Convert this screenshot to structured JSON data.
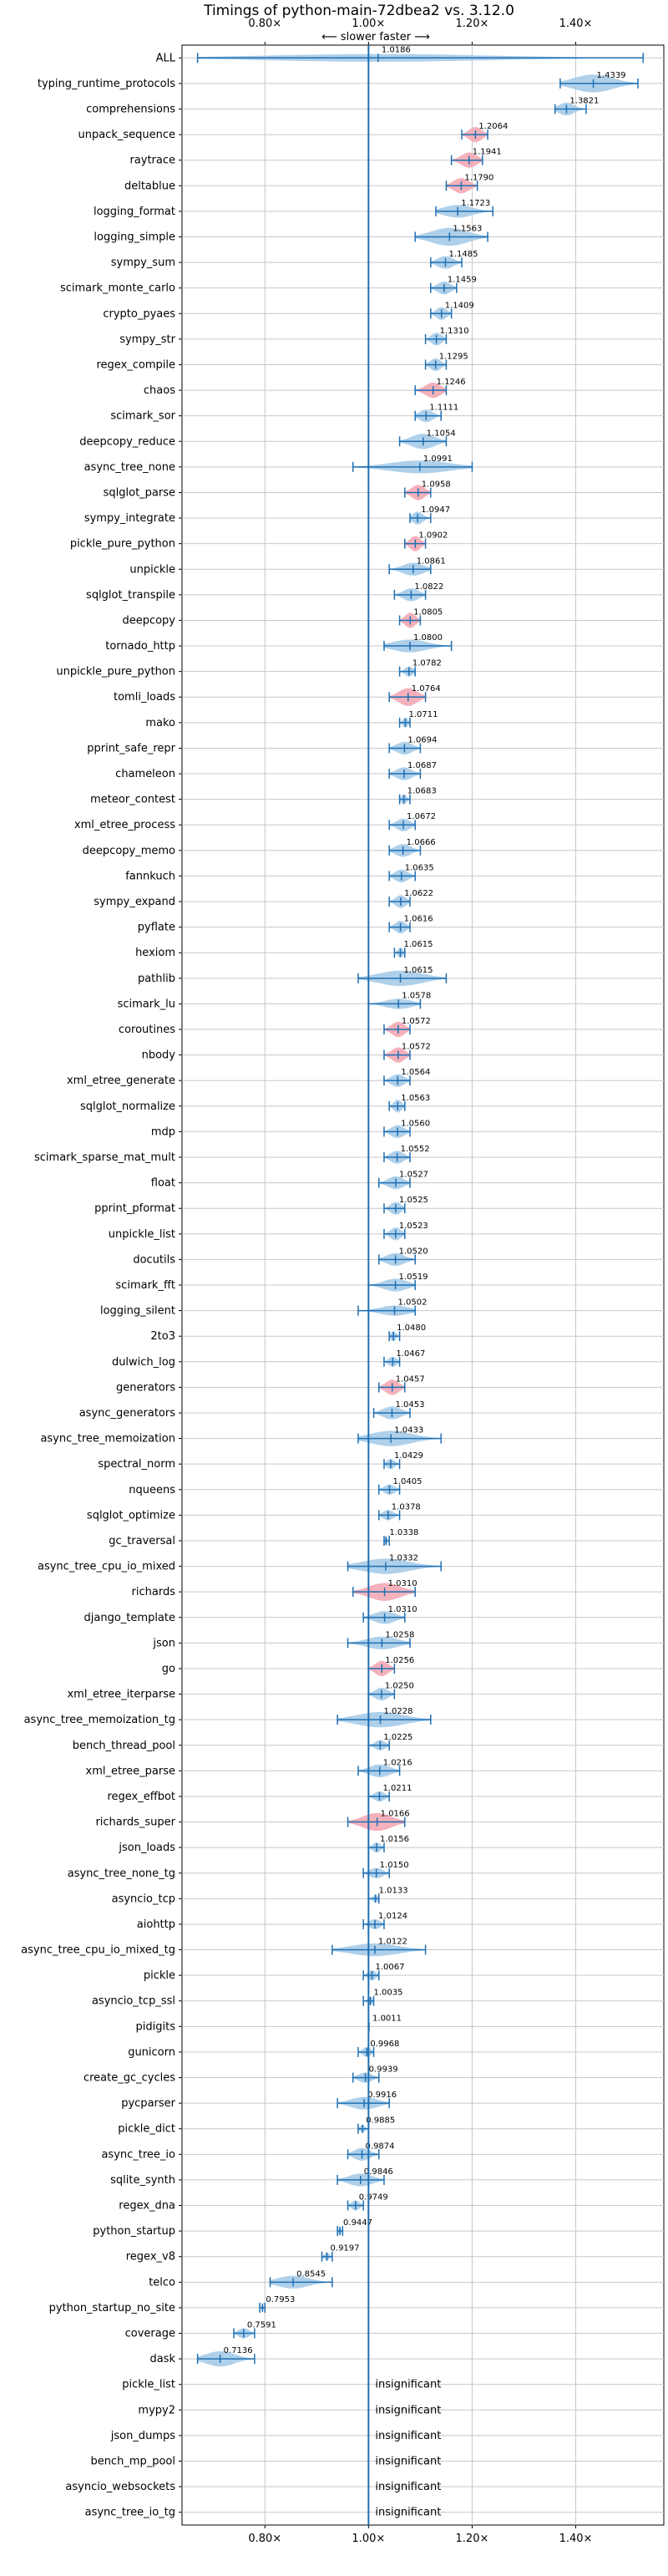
{
  "chart_data": {
    "type": "violin",
    "title": "Timings of python-main-72dbea2 vs. 3.12.0",
    "top_axis_note": "⟵ slower    faster ⟶",
    "x_ticks": [
      {
        "value": 0.8,
        "label": "0.80×"
      },
      {
        "value": 1.0,
        "label": "1.00×"
      },
      {
        "value": 1.2,
        "label": "1.20×"
      },
      {
        "value": 1.4,
        "label": "1.40×"
      }
    ],
    "xlim": [
      0.64,
      1.57
    ],
    "reference_line": 1.0,
    "insignificant_label": "insignificant",
    "colors": {
      "normal": "#a6cbe8",
      "highlight": "#f4a8b4",
      "line": "#1f6fb2",
      "grid": "#c8c8c8"
    },
    "benchmarks": [
      {
        "name": "ALL",
        "value": 1.0186,
        "label": "1.0186",
        "lo": 0.67,
        "hi": 1.53,
        "width": 0.3,
        "highlight": false
      },
      {
        "name": "typing_runtime_protocols",
        "value": 1.4339,
        "label": "1.4339",
        "lo": 1.37,
        "hi": 1.52,
        "width": 0.7,
        "highlight": false
      },
      {
        "name": "comprehensions",
        "value": 1.3821,
        "label": "1.3821",
        "lo": 1.36,
        "hi": 1.42,
        "width": 0.5,
        "highlight": false
      },
      {
        "name": "unpack_sequence",
        "value": 1.2064,
        "label": "1.2064",
        "lo": 1.18,
        "hi": 1.23,
        "width": 0.6,
        "highlight": true
      },
      {
        "name": "raytrace",
        "value": 1.1941,
        "label": "1.1941",
        "lo": 1.16,
        "hi": 1.22,
        "width": 0.6,
        "highlight": true
      },
      {
        "name": "deltablue",
        "value": 1.179,
        "label": "1.1790",
        "lo": 1.15,
        "hi": 1.21,
        "width": 0.6,
        "highlight": true
      },
      {
        "name": "logging_format",
        "value": 1.1723,
        "label": "1.1723",
        "lo": 1.13,
        "hi": 1.24,
        "width": 0.5,
        "highlight": false
      },
      {
        "name": "logging_simple",
        "value": 1.1563,
        "label": "1.1563",
        "lo": 1.09,
        "hi": 1.23,
        "width": 0.7,
        "highlight": false
      },
      {
        "name": "sympy_sum",
        "value": 1.1485,
        "label": "1.1485",
        "lo": 1.12,
        "hi": 1.18,
        "width": 0.5,
        "highlight": false
      },
      {
        "name": "scimark_monte_carlo",
        "value": 1.1459,
        "label": "1.1459",
        "lo": 1.12,
        "hi": 1.17,
        "width": 0.5,
        "highlight": false
      },
      {
        "name": "crypto_pyaes",
        "value": 1.1409,
        "label": "1.1409",
        "lo": 1.12,
        "hi": 1.16,
        "width": 0.5,
        "highlight": false
      },
      {
        "name": "sympy_str",
        "value": 1.131,
        "label": "1.1310",
        "lo": 1.11,
        "hi": 1.15,
        "width": 0.5,
        "highlight": false
      },
      {
        "name": "regex_compile",
        "value": 1.1295,
        "label": "1.1295",
        "lo": 1.11,
        "hi": 1.15,
        "width": 0.5,
        "highlight": false
      },
      {
        "name": "chaos",
        "value": 1.1246,
        "label": "1.1246",
        "lo": 1.09,
        "hi": 1.15,
        "width": 0.6,
        "highlight": true
      },
      {
        "name": "scimark_sor",
        "value": 1.1111,
        "label": "1.1111",
        "lo": 1.09,
        "hi": 1.14,
        "width": 0.5,
        "highlight": false
      },
      {
        "name": "deepcopy_reduce",
        "value": 1.1054,
        "label": "1.1054",
        "lo": 1.06,
        "hi": 1.15,
        "width": 0.6,
        "highlight": false
      },
      {
        "name": "async_tree_none",
        "value": 1.0991,
        "label": "1.0991",
        "lo": 0.97,
        "hi": 1.2,
        "width": 0.5,
        "highlight": false
      },
      {
        "name": "sqlglot_parse",
        "value": 1.0958,
        "label": "1.0958",
        "lo": 1.07,
        "hi": 1.12,
        "width": 0.6,
        "highlight": true
      },
      {
        "name": "sympy_integrate",
        "value": 1.0947,
        "label": "1.0947",
        "lo": 1.08,
        "hi": 1.12,
        "width": 0.5,
        "highlight": false
      },
      {
        "name": "pickle_pure_python",
        "value": 1.0902,
        "label": "1.0902",
        "lo": 1.07,
        "hi": 1.11,
        "width": 0.6,
        "highlight": true
      },
      {
        "name": "unpickle",
        "value": 1.0861,
        "label": "1.0861",
        "lo": 1.04,
        "hi": 1.12,
        "width": 0.5,
        "highlight": false
      },
      {
        "name": "sqlglot_transpile",
        "value": 1.0822,
        "label": "1.0822",
        "lo": 1.05,
        "hi": 1.11,
        "width": 0.5,
        "highlight": false
      },
      {
        "name": "deepcopy",
        "value": 1.0805,
        "label": "1.0805",
        "lo": 1.06,
        "hi": 1.1,
        "width": 0.6,
        "highlight": true
      },
      {
        "name": "tornado_http",
        "value": 1.08,
        "label": "1.0800",
        "lo": 1.03,
        "hi": 1.16,
        "width": 0.5,
        "highlight": false
      },
      {
        "name": "unpickle_pure_python",
        "value": 1.0782,
        "label": "1.0782",
        "lo": 1.06,
        "hi": 1.09,
        "width": 0.4,
        "highlight": false
      },
      {
        "name": "tomli_loads",
        "value": 1.0764,
        "label": "1.0764",
        "lo": 1.04,
        "hi": 1.11,
        "width": 0.7,
        "highlight": true
      },
      {
        "name": "mako",
        "value": 1.0711,
        "label": "1.0711",
        "lo": 1.06,
        "hi": 1.08,
        "width": 0.4,
        "highlight": false
      },
      {
        "name": "pprint_safe_repr",
        "value": 1.0694,
        "label": "1.0694",
        "lo": 1.04,
        "hi": 1.1,
        "width": 0.5,
        "highlight": false
      },
      {
        "name": "chameleon",
        "value": 1.0687,
        "label": "1.0687",
        "lo": 1.04,
        "hi": 1.1,
        "width": 0.5,
        "highlight": false
      },
      {
        "name": "meteor_contest",
        "value": 1.0683,
        "label": "1.0683",
        "lo": 1.06,
        "hi": 1.08,
        "width": 0.4,
        "highlight": false
      },
      {
        "name": "xml_etree_process",
        "value": 1.0672,
        "label": "1.0672",
        "lo": 1.04,
        "hi": 1.09,
        "width": 0.5,
        "highlight": false
      },
      {
        "name": "deepcopy_memo",
        "value": 1.0666,
        "label": "1.0666",
        "lo": 1.04,
        "hi": 1.1,
        "width": 0.5,
        "highlight": false
      },
      {
        "name": "fannkuch",
        "value": 1.0635,
        "label": "1.0635",
        "lo": 1.04,
        "hi": 1.09,
        "width": 0.5,
        "highlight": false
      },
      {
        "name": "sympy_expand",
        "value": 1.0622,
        "label": "1.0622",
        "lo": 1.04,
        "hi": 1.08,
        "width": 0.5,
        "highlight": false
      },
      {
        "name": "pyflate",
        "value": 1.0616,
        "label": "1.0616",
        "lo": 1.04,
        "hi": 1.08,
        "width": 0.5,
        "highlight": false
      },
      {
        "name": "hexiom",
        "value": 1.0615,
        "label": "1.0615",
        "lo": 1.05,
        "hi": 1.07,
        "width": 0.4,
        "highlight": false
      },
      {
        "name": "pathlib",
        "value": 1.0615,
        "label": "1.0615",
        "lo": 0.98,
        "hi": 1.15,
        "width": 0.6,
        "highlight": false
      },
      {
        "name": "scimark_lu",
        "value": 1.0578,
        "label": "1.0578",
        "lo": 1.0,
        "hi": 1.1,
        "width": 0.4,
        "highlight": false
      },
      {
        "name": "coroutines",
        "value": 1.0572,
        "label": "1.0572",
        "lo": 1.03,
        "hi": 1.08,
        "width": 0.6,
        "highlight": true
      },
      {
        "name": "nbody",
        "value": 1.0572,
        "label": "1.0572",
        "lo": 1.03,
        "hi": 1.08,
        "width": 0.6,
        "highlight": true
      },
      {
        "name": "xml_etree_generate",
        "value": 1.0564,
        "label": "1.0564",
        "lo": 1.03,
        "hi": 1.08,
        "width": 0.5,
        "highlight": false
      },
      {
        "name": "sqlglot_normalize",
        "value": 1.0563,
        "label": "1.0563",
        "lo": 1.04,
        "hi": 1.07,
        "width": 0.5,
        "highlight": false
      },
      {
        "name": "mdp",
        "value": 1.056,
        "label": "1.0560",
        "lo": 1.03,
        "hi": 1.08,
        "width": 0.5,
        "highlight": false
      },
      {
        "name": "scimark_sparse_mat_mult",
        "value": 1.0552,
        "label": "1.0552",
        "lo": 1.03,
        "hi": 1.08,
        "width": 0.5,
        "highlight": false
      },
      {
        "name": "float",
        "value": 1.0527,
        "label": "1.0527",
        "lo": 1.02,
        "hi": 1.08,
        "width": 0.5,
        "highlight": false
      },
      {
        "name": "pprint_pformat",
        "value": 1.0525,
        "label": "1.0525",
        "lo": 1.03,
        "hi": 1.07,
        "width": 0.5,
        "highlight": false
      },
      {
        "name": "unpickle_list",
        "value": 1.0523,
        "label": "1.0523",
        "lo": 1.03,
        "hi": 1.07,
        "width": 0.5,
        "highlight": false
      },
      {
        "name": "docutils",
        "value": 1.052,
        "label": "1.0520",
        "lo": 1.02,
        "hi": 1.09,
        "width": 0.5,
        "highlight": false
      },
      {
        "name": "scimark_fft",
        "value": 1.0519,
        "label": "1.0519",
        "lo": 1.0,
        "hi": 1.09,
        "width": 0.5,
        "highlight": false
      },
      {
        "name": "logging_silent",
        "value": 1.0502,
        "label": "1.0502",
        "lo": 0.98,
        "hi": 1.09,
        "width": 0.4,
        "highlight": false
      },
      {
        "name": "2to3",
        "value": 1.048,
        "label": "1.0480",
        "lo": 1.04,
        "hi": 1.06,
        "width": 0.4,
        "highlight": false
      },
      {
        "name": "dulwich_log",
        "value": 1.0467,
        "label": "1.0467",
        "lo": 1.03,
        "hi": 1.06,
        "width": 0.4,
        "highlight": false
      },
      {
        "name": "generators",
        "value": 1.0457,
        "label": "1.0457",
        "lo": 1.02,
        "hi": 1.07,
        "width": 0.6,
        "highlight": true
      },
      {
        "name": "async_generators",
        "value": 1.0453,
        "label": "1.0453",
        "lo": 1.01,
        "hi": 1.08,
        "width": 0.5,
        "highlight": false
      },
      {
        "name": "async_tree_memoization",
        "value": 1.0433,
        "label": "1.0433",
        "lo": 0.98,
        "hi": 1.14,
        "width": 0.6,
        "highlight": false
      },
      {
        "name": "spectral_norm",
        "value": 1.0429,
        "label": "1.0429",
        "lo": 1.03,
        "hi": 1.06,
        "width": 0.4,
        "highlight": false
      },
      {
        "name": "nqueens",
        "value": 1.0405,
        "label": "1.0405",
        "lo": 1.02,
        "hi": 1.06,
        "width": 0.4,
        "highlight": false
      },
      {
        "name": "sqlglot_optimize",
        "value": 1.0378,
        "label": "1.0378",
        "lo": 1.02,
        "hi": 1.06,
        "width": 0.4,
        "highlight": false
      },
      {
        "name": "gc_traversal",
        "value": 1.0338,
        "label": "1.0338",
        "lo": 1.03,
        "hi": 1.04,
        "width": 0.3,
        "highlight": false
      },
      {
        "name": "async_tree_cpu_io_mixed",
        "value": 1.0332,
        "label": "1.0332",
        "lo": 0.96,
        "hi": 1.14,
        "width": 0.6,
        "highlight": false
      },
      {
        "name": "richards",
        "value": 1.031,
        "label": "1.0310",
        "lo": 0.97,
        "hi": 1.09,
        "width": 0.7,
        "highlight": true
      },
      {
        "name": "django_template",
        "value": 1.031,
        "label": "1.0310",
        "lo": 0.99,
        "hi": 1.07,
        "width": 0.5,
        "highlight": false
      },
      {
        "name": "json",
        "value": 1.0258,
        "label": "1.0258",
        "lo": 0.96,
        "hi": 1.08,
        "width": 0.5,
        "highlight": false
      },
      {
        "name": "go",
        "value": 1.0256,
        "label": "1.0256",
        "lo": 1.0,
        "hi": 1.05,
        "width": 0.6,
        "highlight": true
      },
      {
        "name": "xml_etree_iterparse",
        "value": 1.025,
        "label": "1.0250",
        "lo": 1.0,
        "hi": 1.05,
        "width": 0.5,
        "highlight": false
      },
      {
        "name": "async_tree_memoization_tg",
        "value": 1.0228,
        "label": "1.0228",
        "lo": 0.94,
        "hi": 1.12,
        "width": 0.6,
        "highlight": false
      },
      {
        "name": "bench_thread_pool",
        "value": 1.0225,
        "label": "1.0225",
        "lo": 1.0,
        "hi": 1.04,
        "width": 0.4,
        "highlight": false
      },
      {
        "name": "xml_etree_parse",
        "value": 1.0216,
        "label": "1.0216",
        "lo": 0.98,
        "hi": 1.06,
        "width": 0.5,
        "highlight": false
      },
      {
        "name": "regex_effbot",
        "value": 1.0211,
        "label": "1.0211",
        "lo": 1.0,
        "hi": 1.04,
        "width": 0.4,
        "highlight": false
      },
      {
        "name": "richards_super",
        "value": 1.0166,
        "label": "1.0166",
        "lo": 0.96,
        "hi": 1.07,
        "width": 0.7,
        "highlight": true
      },
      {
        "name": "json_loads",
        "value": 1.0156,
        "label": "1.0156",
        "lo": 1.0,
        "hi": 1.03,
        "width": 0.4,
        "highlight": false
      },
      {
        "name": "async_tree_none_tg",
        "value": 1.015,
        "label": "1.0150",
        "lo": 0.99,
        "hi": 1.04,
        "width": 0.4,
        "highlight": false
      },
      {
        "name": "asyncio_tcp",
        "value": 1.0133,
        "label": "1.0133",
        "lo": 1.0,
        "hi": 1.02,
        "width": 0.3,
        "highlight": false
      },
      {
        "name": "aiohttp",
        "value": 1.0124,
        "label": "1.0124",
        "lo": 0.99,
        "hi": 1.03,
        "width": 0.4,
        "highlight": false
      },
      {
        "name": "async_tree_cpu_io_mixed_tg",
        "value": 1.0122,
        "label": "1.0122",
        "lo": 0.93,
        "hi": 1.11,
        "width": 0.5,
        "highlight": false
      },
      {
        "name": "pickle",
        "value": 1.0067,
        "label": "1.0067",
        "lo": 0.99,
        "hi": 1.02,
        "width": 0.4,
        "highlight": false
      },
      {
        "name": "asyncio_tcp_ssl",
        "value": 1.0035,
        "label": "1.0035",
        "lo": 0.99,
        "hi": 1.01,
        "width": 0.3,
        "highlight": false
      },
      {
        "name": "pidigits",
        "value": 1.0011,
        "label": "1.0011",
        "lo": 1.0,
        "hi": 1.0,
        "width": 0.1,
        "highlight": false
      },
      {
        "name": "gunicorn",
        "value": 0.9968,
        "label": "0.9968",
        "lo": 0.98,
        "hi": 1.01,
        "width": 0.4,
        "highlight": false
      },
      {
        "name": "create_gc_cycles",
        "value": 0.9939,
        "label": "0.9939",
        "lo": 0.97,
        "hi": 1.02,
        "width": 0.4,
        "highlight": false
      },
      {
        "name": "pycparser",
        "value": 0.9916,
        "label": "0.9916",
        "lo": 0.94,
        "hi": 1.04,
        "width": 0.5,
        "highlight": false
      },
      {
        "name": "pickle_dict",
        "value": 0.9885,
        "label": "0.9885",
        "lo": 0.98,
        "hi": 1.0,
        "width": 0.3,
        "highlight": false
      },
      {
        "name": "async_tree_io",
        "value": 0.9874,
        "label": "0.9874",
        "lo": 0.96,
        "hi": 1.02,
        "width": 0.5,
        "highlight": false
      },
      {
        "name": "sqlite_synth",
        "value": 0.9846,
        "label": "0.9846",
        "lo": 0.94,
        "hi": 1.03,
        "width": 0.5,
        "highlight": false
      },
      {
        "name": "regex_dna",
        "value": 0.9749,
        "label": "0.9749",
        "lo": 0.96,
        "hi": 0.99,
        "width": 0.4,
        "highlight": false
      },
      {
        "name": "python_startup",
        "value": 0.9447,
        "label": "0.9447",
        "lo": 0.94,
        "hi": 0.95,
        "width": 0.3,
        "highlight": false
      },
      {
        "name": "regex_v8",
        "value": 0.9197,
        "label": "0.9197",
        "lo": 0.91,
        "hi": 0.93,
        "width": 0.3,
        "highlight": false
      },
      {
        "name": "telco",
        "value": 0.8545,
        "label": "0.8545",
        "lo": 0.81,
        "hi": 0.93,
        "width": 0.5,
        "highlight": false
      },
      {
        "name": "python_startup_no_site",
        "value": 0.7953,
        "label": "0.7953",
        "lo": 0.79,
        "hi": 0.8,
        "width": 0.2,
        "highlight": false
      },
      {
        "name": "coverage",
        "value": 0.7591,
        "label": "0.7591",
        "lo": 0.74,
        "hi": 0.78,
        "width": 0.4,
        "highlight": false
      },
      {
        "name": "dask",
        "value": 0.7136,
        "label": "0.7136",
        "lo": 0.67,
        "hi": 0.78,
        "width": 0.6,
        "highlight": false
      },
      {
        "name": "pickle_list",
        "insignificant": true
      },
      {
        "name": "mypy2",
        "insignificant": true
      },
      {
        "name": "json_dumps",
        "insignificant": true
      },
      {
        "name": "bench_mp_pool",
        "insignificant": true
      },
      {
        "name": "asyncio_websockets",
        "insignificant": true
      },
      {
        "name": "async_tree_io_tg",
        "insignificant": true
      }
    ]
  }
}
